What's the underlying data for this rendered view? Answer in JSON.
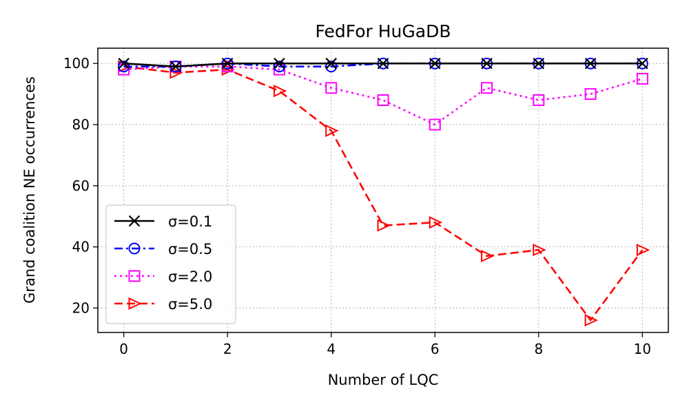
{
  "chart_data": {
    "type": "line",
    "title": "FedFor HuGaDB",
    "xlabel": "Number of LQC",
    "ylabel": "Grand coalition NE occurrences",
    "xlim": [
      -0.5,
      10.5
    ],
    "ylim": [
      12,
      105
    ],
    "xticks": [
      0,
      2,
      4,
      6,
      8,
      10
    ],
    "yticks": [
      20,
      40,
      60,
      80,
      100
    ],
    "grid": true,
    "grid_style": "dotted",
    "legend_position": "lower-left",
    "x": [
      0,
      1,
      2,
      3,
      4,
      5,
      6,
      7,
      8,
      9,
      10
    ],
    "series": [
      {
        "name": "σ=0.1",
        "values": [
          100,
          99,
          100,
          100,
          100,
          100,
          100,
          100,
          100,
          100,
          100
        ],
        "color": "#000000",
        "dash": "solid",
        "marker": "x"
      },
      {
        "name": "σ=0.5",
        "values": [
          99,
          99,
          100,
          99,
          99,
          100,
          100,
          100,
          100,
          100,
          100
        ],
        "color": "#0000ff",
        "dash": "dashdot",
        "marker": "circle"
      },
      {
        "name": "σ=2.0",
        "values": [
          98,
          99,
          99,
          98,
          92,
          88,
          80,
          92,
          88,
          90,
          95
        ],
        "color": "#ff00ff",
        "dash": "dotted",
        "marker": "square"
      },
      {
        "name": "σ=5.0",
        "values": [
          99,
          97,
          98,
          91,
          78,
          47,
          48,
          37,
          39,
          16,
          39
        ],
        "color": "#ff0000",
        "dash": "dashed",
        "marker": "triangle-right"
      }
    ]
  }
}
